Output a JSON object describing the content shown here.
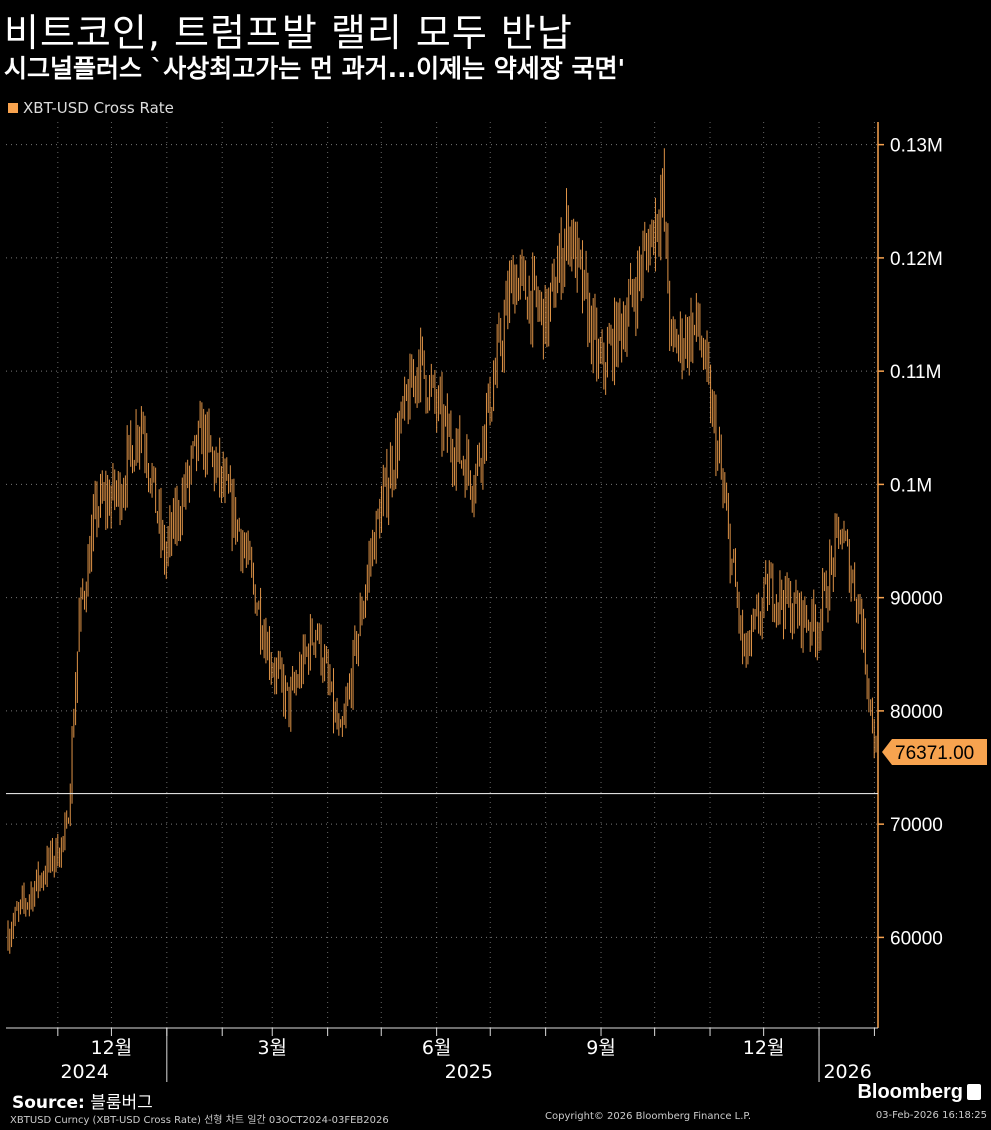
{
  "header": {
    "title": "비트코인, 트럼프발 랠리 모두 반납",
    "subtitle": "시그널플러스 `사상최고가는 먼 과거...이제는 약세장 국면'"
  },
  "legend": {
    "label": "XBT-USD Cross Rate",
    "color": "#f7a34f"
  },
  "chart_data": {
    "type": "line",
    "series": [
      {
        "name": "XBT-USD Cross Rate",
        "x": [
          "2024-10-03",
          "2024-10-20",
          "2024-11-05",
          "2024-11-12",
          "2024-11-22",
          "2024-12-05",
          "2024-12-17",
          "2024-12-30",
          "2025-01-20",
          "2025-02-10",
          "2025-02-28",
          "2025-03-10",
          "2025-03-25",
          "2025-04-08",
          "2025-04-25",
          "2025-05-10",
          "2025-05-22",
          "2025-06-05",
          "2025-06-22",
          "2025-07-03",
          "2025-07-14",
          "2025-08-02",
          "2025-08-14",
          "2025-09-01",
          "2025-09-18",
          "2025-10-06",
          "2025-10-11",
          "2025-10-26",
          "2025-11-05",
          "2025-11-21",
          "2025-12-05",
          "2025-12-18",
          "2026-01-01",
          "2026-01-14",
          "2026-01-25",
          "2026-02-03"
        ],
        "values": [
          60500,
          65000,
          69000,
          88000,
          98000,
          99500,
          106000,
          93500,
          104500,
          96000,
          84500,
          80500,
          87500,
          77000,
          94000,
          104000,
          111000,
          105000,
          100500,
          109000,
          118500,
          114500,
          123000,
          110000,
          116000,
          125500,
          112000,
          114000,
          104000,
          84500,
          91000,
          89000,
          87500,
          96000,
          89000,
          76371
        ]
      }
    ],
    "xlabel": "",
    "ylabel": "",
    "xlim": [
      "2024-10-03",
      "2026-02-03"
    ],
    "ylim": [
      52000,
      132000
    ],
    "reference_line": 72700,
    "last_value_label": "76371.00",
    "y_ticks": [
      {
        "value": 60000,
        "label": "60000"
      },
      {
        "value": 70000,
        "label": "70000"
      },
      {
        "value": 80000,
        "label": "80000"
      },
      {
        "value": 90000,
        "label": "90000"
      },
      {
        "value": 100000,
        "label": "0.1M"
      },
      {
        "value": 110000,
        "label": "0.11M"
      },
      {
        "value": 120000,
        "label": "0.12M"
      },
      {
        "value": 130000,
        "label": "0.13M"
      }
    ],
    "x_ticks": [
      {
        "date": "2024-12-01",
        "label": "12월"
      },
      {
        "date": "2025-03-01",
        "label": "3월"
      },
      {
        "date": "2025-06-01",
        "label": "6월"
      },
      {
        "date": "2025-09-01",
        "label": "9월"
      },
      {
        "date": "2025-12-01",
        "label": "12월"
      }
    ],
    "year_labels": [
      {
        "date": "2024-11-16",
        "label": "2024"
      },
      {
        "date": "2025-06-19",
        "label": "2025"
      },
      {
        "date": "2026-01-17",
        "label": "2026"
      }
    ],
    "grid": true
  },
  "footer": {
    "source_label": "Source:",
    "source_value": "블룸버그",
    "brand": "Bloomberg",
    "details": "XBTUSD Curncy (XBT-USD Cross Rate) 선형 차트 일간 03OCT2024-03FEB2026",
    "copyright": "Copyright© 2026 Bloomberg Finance L.P.",
    "timestamp": "03-Feb-2026 16:18:25"
  }
}
